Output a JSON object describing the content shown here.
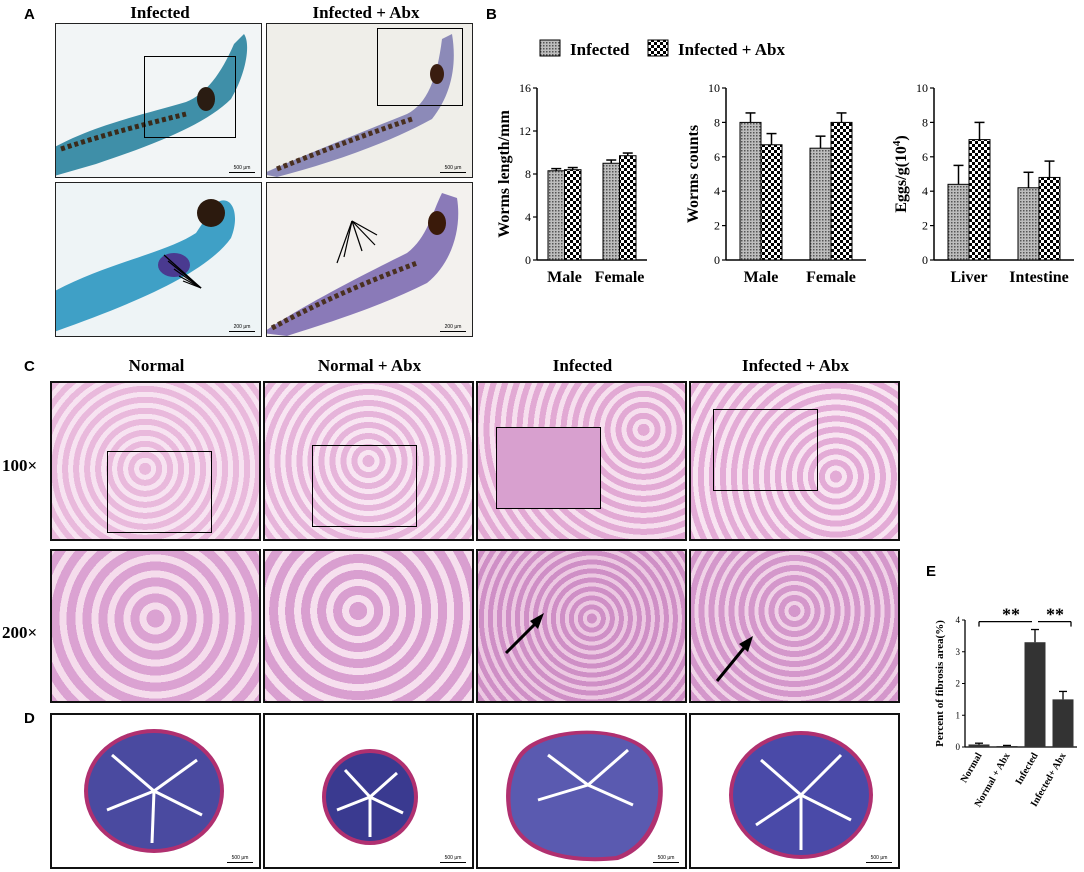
{
  "panels": {
    "A": "A",
    "B": "B",
    "C": "C",
    "D": "D",
    "E": "E"
  },
  "panel_a": {
    "col_headers": [
      "Infected",
      "Infected + Abx"
    ],
    "scale_top": "500 μm",
    "scale_bottom": "200 μm"
  },
  "panel_b": {
    "legend": [
      "Infected",
      "Infected + Abx"
    ]
  },
  "panel_c": {
    "col_headers": [
      "Normal",
      "Normal + Abx",
      "Infected",
      "Infected + Abx"
    ],
    "row_labels": [
      "100×",
      "200×"
    ]
  },
  "panel_d": {
    "scale": "500 μm"
  },
  "colors": {
    "infected_fill": "#9a9a9a",
    "abx_pattern": "checker",
    "bar_e": "#333333"
  },
  "chart_data": [
    {
      "type": "bar",
      "ylabel": "Worms length/mm",
      "categories": [
        "Male",
        "Female"
      ],
      "ylim": [
        0,
        16
      ],
      "yticks": [
        "0",
        "4",
        "8",
        "12",
        "16"
      ],
      "series": [
        {
          "name": "Infected",
          "values": [
            8.3,
            9.0
          ],
          "errors": [
            0.2,
            0.3
          ]
        },
        {
          "name": "Infected + Abx",
          "values": [
            8.4,
            9.7
          ],
          "errors": [
            0.2,
            0.25
          ]
        }
      ]
    },
    {
      "type": "bar",
      "ylabel": "Worms counts",
      "categories": [
        "Male",
        "Female"
      ],
      "ylim": [
        0,
        10
      ],
      "yticks": [
        "0",
        "2",
        "4",
        "6",
        "8",
        "10"
      ],
      "series": [
        {
          "name": "Infected",
          "values": [
            8.0,
            6.5
          ],
          "errors": [
            0.55,
            0.7
          ]
        },
        {
          "name": "Infected + Abx",
          "values": [
            6.7,
            8.0
          ],
          "errors": [
            0.65,
            0.55
          ]
        }
      ]
    },
    {
      "type": "bar",
      "ylabel": "Eggs/g(10",
      "ylabel_sup": "4",
      "ylabel_end": ")",
      "categories": [
        "Liver",
        "Intestine"
      ],
      "ylim": [
        0,
        10
      ],
      "yticks": [
        "0",
        "2",
        "4",
        "6",
        "8",
        "10"
      ],
      "series": [
        {
          "name": "Infected",
          "values": [
            4.4,
            4.2
          ],
          "errors": [
            1.1,
            0.9
          ]
        },
        {
          "name": "Infected + Abx",
          "values": [
            7.0,
            4.8
          ],
          "errors": [
            1.0,
            0.95
          ]
        }
      ]
    },
    {
      "type": "bar",
      "ylabel": "Percent of fibrosis area(%)",
      "categories": [
        "Normal",
        "Normal + Abx",
        "Infected",
        "Infected+ Abx"
      ],
      "ylim": [
        0,
        4
      ],
      "yticks": [
        "0",
        "1",
        "2",
        "3",
        "4"
      ],
      "series": [
        {
          "values": [
            0.08,
            0.03,
            3.3,
            1.5
          ],
          "errors": [
            0.04,
            0.02,
            0.4,
            0.25
          ]
        }
      ],
      "annotations": [
        "**",
        "**"
      ]
    }
  ]
}
